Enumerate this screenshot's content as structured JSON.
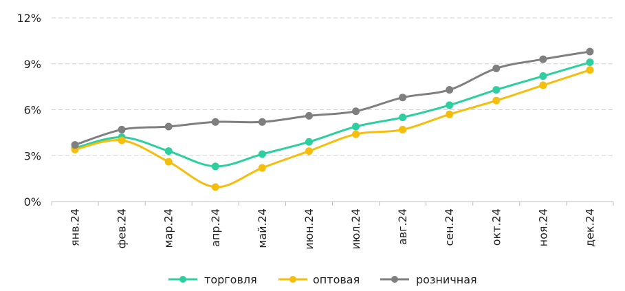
{
  "chart_data": {
    "type": "line",
    "categories": [
      "янв.24",
      "фев.24",
      "мар.24",
      "апр.24",
      "май.24",
      "июн.24",
      "июл.24",
      "авг.24",
      "сен.24",
      "окт.24",
      "ноя.24",
      "дек.24"
    ],
    "series": [
      {
        "name": "торговля",
        "color": "#2dcfa0",
        "values": [
          3.5,
          4.2,
          3.3,
          2.3,
          3.1,
          3.9,
          4.9,
          5.5,
          6.3,
          7.3,
          8.2,
          9.1
        ]
      },
      {
        "name": "оптовая",
        "color": "#f5bd0c",
        "values": [
          3.4,
          4.0,
          2.6,
          0.95,
          2.2,
          3.3,
          4.4,
          4.7,
          5.7,
          6.6,
          7.6,
          8.6
        ]
      },
      {
        "name": "розничная",
        "color": "#7f7f7f",
        "values": [
          3.7,
          4.7,
          4.9,
          5.2,
          5.2,
          5.6,
          5.9,
          6.8,
          7.3,
          8.7,
          9.3,
          9.8
        ]
      }
    ],
    "yticks": [
      "0%",
      "3%",
      "6%",
      "9%",
      "12%"
    ],
    "ytick_values": [
      0,
      3,
      6,
      9,
      12
    ],
    "ylim": [
      0,
      12
    ],
    "grid": "horizontal dashed",
    "legend_position": "bottom"
  }
}
